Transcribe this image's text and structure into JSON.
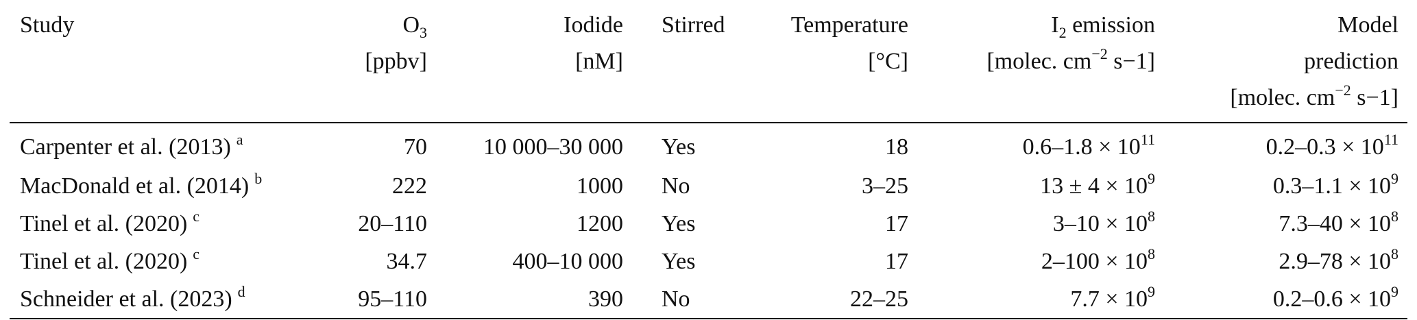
{
  "table": {
    "header": [
      [
        [
          {
            "text": "Study"
          }
        ]
      ],
      [
        [
          {
            "text": "O"
          },
          {
            "sub": "3"
          }
        ],
        [
          {
            "text": "[ppbv]"
          }
        ]
      ],
      [
        [
          {
            "text": "Iodide"
          }
        ],
        [
          {
            "text": "[nM]"
          }
        ]
      ],
      [
        [
          {
            "text": "Stirred"
          }
        ]
      ],
      [
        [
          {
            "text": "Temperature"
          }
        ],
        [
          {
            "text": "[°C]"
          }
        ]
      ],
      [
        [
          {
            "text": "I"
          },
          {
            "sub": "2"
          },
          {
            "text": " emission"
          }
        ],
        [
          {
            "text": "[molec. cm"
          },
          {
            "sup": "−2"
          },
          {
            "text": " s−1]"
          }
        ]
      ],
      [
        [
          {
            "text": "Model"
          }
        ],
        [
          {
            "text": "prediction"
          }
        ],
        [
          {
            "text": "[molec. cm"
          },
          {
            "sup": "−2"
          },
          {
            "text": " s−1]"
          }
        ]
      ]
    ],
    "rows": [
      [
        [
          {
            "text": "Carpenter et al. (2013)"
          },
          {
            "sup": "a"
          }
        ],
        [
          {
            "text": "70"
          }
        ],
        [
          {
            "text": "10 000–30 000"
          }
        ],
        [
          {
            "text": "Yes"
          }
        ],
        [
          {
            "text": "18"
          }
        ],
        [
          {
            "text": "0.6–1.8 × 10"
          },
          {
            "sup": "11"
          }
        ],
        [
          {
            "text": "0.2–0.3 × 10"
          },
          {
            "sup": "11"
          }
        ]
      ],
      [
        [
          {
            "text": "MacDonald et al. (2014)"
          },
          {
            "sup": "b"
          }
        ],
        [
          {
            "text": "222"
          }
        ],
        [
          {
            "text": "1000"
          }
        ],
        [
          {
            "text": "No"
          }
        ],
        [
          {
            "text": "3–25"
          }
        ],
        [
          {
            "text": "13 ± 4 × 10"
          },
          {
            "sup": "9"
          }
        ],
        [
          {
            "text": "0.3–1.1 × 10"
          },
          {
            "sup": "9"
          }
        ]
      ],
      [
        [
          {
            "text": "Tinel et al. (2020)"
          },
          {
            "sup": "c"
          }
        ],
        [
          {
            "text": "20–110"
          }
        ],
        [
          {
            "text": "1200"
          }
        ],
        [
          {
            "text": "Yes"
          }
        ],
        [
          {
            "text": "17"
          }
        ],
        [
          {
            "text": "3–10 × 10"
          },
          {
            "sup": "8"
          }
        ],
        [
          {
            "text": "7.3–40 × 10"
          },
          {
            "sup": "8"
          }
        ]
      ],
      [
        [
          {
            "text": "Tinel et al. (2020)"
          },
          {
            "sup": "c"
          }
        ],
        [
          {
            "text": "34.7"
          }
        ],
        [
          {
            "text": "400–10 000"
          }
        ],
        [
          {
            "text": "Yes"
          }
        ],
        [
          {
            "text": "17"
          }
        ],
        [
          {
            "text": "2–100 × 10"
          },
          {
            "sup": "8"
          }
        ],
        [
          {
            "text": "2.9–78 × 10"
          },
          {
            "sup": "8"
          }
        ]
      ],
      [
        [
          {
            "text": "Schneider et al. (2023)"
          },
          {
            "sup": "d"
          }
        ],
        [
          {
            "text": "95–110"
          }
        ],
        [
          {
            "text": "390"
          }
        ],
        [
          {
            "text": "No"
          }
        ],
        [
          {
            "text": "22–25"
          }
        ],
        [
          {
            "text": "7.7 × 10"
          },
          {
            "sup": "9"
          }
        ],
        [
          {
            "text": "0.2–0.6 × 10"
          },
          {
            "sup": "9"
          }
        ]
      ]
    ]
  }
}
